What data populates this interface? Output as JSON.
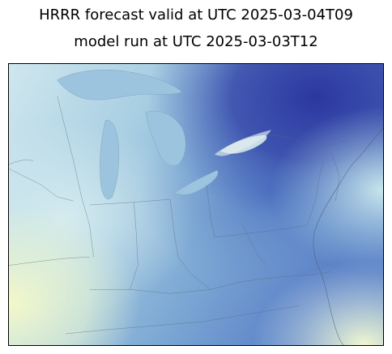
{
  "figure": {
    "title_line_1": "HRRR forecast valid at UTC 2025-03-04T09",
    "title_line_2": "model run at UTC 2025-03-03T12"
  },
  "map": {
    "colors": {
      "deep": "#2c3aa0",
      "dark": "#3f5cb8",
      "mid": "#6f98cc",
      "light": "#a8cfe2",
      "pale": "#d6ecef",
      "warm": "#f3f8c9",
      "lake": "#8fbad8",
      "border_line": "#5a6a7a"
    }
  }
}
